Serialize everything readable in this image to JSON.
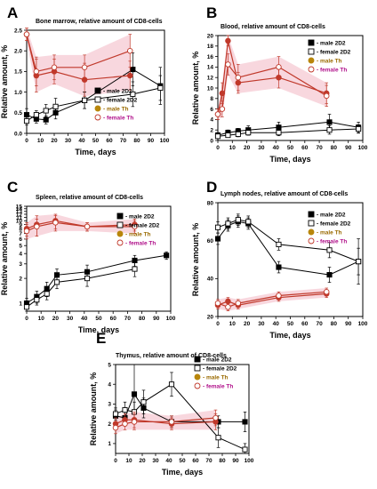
{
  "colors": {
    "male_2D2": "#000000",
    "female_2D2": "#000000",
    "male_Th": "#c0392b",
    "female_Th": "#c0392b",
    "band": "#f5c6d0",
    "legend_th_male": "#9a6a00",
    "legend_th_female": "#b0108a"
  },
  "chart_data": [
    {
      "letter": "A",
      "type": "line",
      "title": "Bone marrow, relative amount of CD8-cells",
      "xlabel": "Time, days",
      "ylabel": "Relative amount, %",
      "xlim": [
        0,
        100
      ],
      "ylim": [
        0,
        2.5
      ],
      "xticks": [
        0,
        10,
        20,
        30,
        40,
        50,
        60,
        70,
        80,
        90,
        100
      ],
      "yticks": [
        0.0,
        0.5,
        1.0,
        1.5,
        2.0,
        2.5
      ],
      "series": [
        {
          "name": "male 2D2",
          "x": [
            0,
            7,
            14,
            21,
            42,
            77,
            97
          ],
          "y": [
            0.45,
            0.35,
            0.33,
            0.5,
            0.8,
            1.55,
            1.15
          ],
          "err": [
            0.15,
            0.1,
            0.1,
            0.15,
            0.2,
            0.4,
            0.45
          ]
        },
        {
          "name": "female 2D2",
          "x": [
            0,
            7,
            14,
            21,
            42,
            77,
            97
          ],
          "y": [
            0.3,
            0.45,
            0.55,
            0.65,
            0.8,
            0.95,
            1.1
          ],
          "err": [
            0.1,
            0.1,
            0.15,
            0.2,
            0.2,
            0.3,
            0.3
          ]
        },
        {
          "name": "male Th",
          "x": [
            0,
            7,
            20,
            42,
            75
          ],
          "y": [
            2.4,
            1.4,
            1.5,
            1.3,
            1.4
          ],
          "err": [
            0.15,
            0.4,
            0.3,
            0.4,
            0.35
          ]
        },
        {
          "name": "female Th",
          "x": [
            0,
            7,
            20,
            42,
            75
          ],
          "y": [
            2.4,
            1.5,
            1.6,
            1.6,
            2.0
          ],
          "err": [
            0.15,
            0.35,
            0.3,
            0.3,
            0.4
          ]
        }
      ]
    },
    {
      "letter": "B",
      "type": "line",
      "title": "Blood, relative amount of CD8-cells",
      "xlabel": "Time, days",
      "ylabel": "Relative amount, %",
      "xlim": [
        0,
        100
      ],
      "ylim": [
        0,
        20
      ],
      "xticks": [
        0,
        10,
        20,
        30,
        40,
        50,
        60,
        70,
        80,
        90,
        100
      ],
      "yticks": [
        0,
        2,
        4,
        6,
        8,
        10,
        12,
        14,
        16,
        18,
        20
      ],
      "series": [
        {
          "name": "male 2D2",
          "x": [
            0,
            7,
            14,
            21,
            42,
            77,
            97
          ],
          "y": [
            1.0,
            1.5,
            1.8,
            2.0,
            2.5,
            3.5,
            2.5
          ],
          "err": [
            0.5,
            0.5,
            0.5,
            0.8,
            1.0,
            1.5,
            1.0
          ]
        },
        {
          "name": "female 2D2",
          "x": [
            0,
            7,
            14,
            21,
            42,
            77,
            97
          ],
          "y": [
            0.8,
            1.0,
            1.2,
            1.5,
            1.5,
            2.0,
            2.2
          ],
          "err": [
            0.3,
            0.4,
            0.5,
            0.5,
            0.6,
            0.8,
            0.8
          ]
        },
        {
          "name": "male Th",
          "x": [
            0,
            3,
            7,
            14,
            42,
            75
          ],
          "y": [
            5.0,
            9.0,
            19.0,
            11.0,
            12.0,
            9.0
          ],
          "err": [
            1.0,
            2.0,
            1.0,
            2.0,
            2.0,
            2.0
          ]
        },
        {
          "name": "female Th",
          "x": [
            0,
            3,
            7,
            14,
            42,
            75
          ],
          "y": [
            5.0,
            6.0,
            14.5,
            12.0,
            14.0,
            8.5
          ],
          "err": [
            1.0,
            1.5,
            2.0,
            2.5,
            2.0,
            2.0
          ]
        }
      ]
    },
    {
      "letter": "C",
      "type": "line",
      "title": "Spleen, relative amount of CD8-cells",
      "xlabel": "Time, days",
      "ylabel": "Relative amount, %",
      "xlim": [
        0,
        100
      ],
      "ylim": [
        0.8,
        15
      ],
      "yscale": "log",
      "xticks": [
        0,
        10,
        20,
        30,
        40,
        50,
        60,
        70,
        80,
        90,
        100
      ],
      "yticks": [
        1,
        2,
        3,
        4,
        5,
        6,
        7,
        8,
        9,
        10,
        11,
        12,
        13,
        14,
        15
      ],
      "series": [
        {
          "name": "male 2D2",
          "x": [
            0,
            7,
            14,
            21,
            42,
            75,
            97
          ],
          "y": [
            1.0,
            1.2,
            1.5,
            2.2,
            2.4,
            3.3,
            3.8
          ],
          "err": [
            0.15,
            0.2,
            0.3,
            0.4,
            0.5,
            0.5,
            0.4
          ]
        },
        {
          "name": "female 2D2",
          "x": [
            0,
            7,
            14,
            21,
            42,
            75
          ],
          "y": [
            0.9,
            1.1,
            1.3,
            1.8,
            2.0,
            2.6
          ],
          "err": [
            0.1,
            0.15,
            0.2,
            0.3,
            0.4,
            0.5
          ]
        },
        {
          "name": "male Th",
          "x": [
            0,
            7,
            20,
            42,
            75
          ],
          "y": [
            8.0,
            9.0,
            10.0,
            8.5,
            9.0
          ],
          "err": [
            1.5,
            2.5,
            2.0,
            1.0,
            1.5
          ]
        },
        {
          "name": "female Th",
          "x": [
            0,
            7,
            20,
            42,
            75
          ],
          "y": [
            7.5,
            8.5,
            9.5,
            8.5,
            8.5
          ],
          "err": [
            1.5,
            2.0,
            2.0,
            1.0,
            1.5
          ]
        }
      ]
    },
    {
      "letter": "D",
      "type": "line",
      "title": "Lymph nodes, relative amount of CD8-cells",
      "xlabel": "Time, days",
      "ylabel": "Relative amount, %",
      "xlim": [
        0,
        100
      ],
      "ylim": [
        20,
        80
      ],
      "xticks": [
        0,
        10,
        20,
        30,
        40,
        50,
        60,
        70,
        80,
        90,
        100
      ],
      "yticks": [
        20,
        40,
        60,
        80
      ],
      "series": [
        {
          "name": "male 2D2",
          "x": [
            0,
            7,
            14,
            21,
            42,
            77,
            97
          ],
          "y": [
            61,
            68,
            70,
            69,
            46,
            42,
            49
          ],
          "err": [
            3,
            3,
            3,
            3,
            3,
            4,
            7
          ]
        },
        {
          "name": "female 2D2",
          "x": [
            0,
            7,
            14,
            21,
            42,
            77,
            97
          ],
          "y": [
            67,
            69,
            71,
            70,
            58,
            55,
            49
          ],
          "err": [
            3,
            3,
            3,
            3,
            3,
            4,
            12
          ]
        },
        {
          "name": "male Th",
          "x": [
            0,
            7,
            14,
            42,
            75
          ],
          "y": [
            26,
            28,
            26,
            30,
            32
          ],
          "err": [
            2,
            2,
            2,
            2,
            2
          ]
        },
        {
          "name": "female Th",
          "x": [
            0,
            7,
            14,
            42,
            75
          ],
          "y": [
            27,
            25,
            27,
            31,
            33
          ],
          "err": [
            2,
            2,
            2,
            2,
            2
          ]
        }
      ]
    },
    {
      "letter": "E",
      "type": "line",
      "title": "Thymus, relative amount of CD8-cells",
      "xlabel": "Time, days",
      "ylabel": "Relative amount, %",
      "xlim": [
        0,
        100
      ],
      "ylim": [
        0.5,
        5
      ],
      "xticks": [
        0,
        10,
        20,
        30,
        40,
        50,
        60,
        70,
        80,
        90,
        100
      ],
      "yticks": [
        1,
        2,
        3,
        4,
        5
      ],
      "series": [
        {
          "name": "male 2D2",
          "x": [
            0,
            7,
            14,
            21,
            42,
            77,
            97
          ],
          "y": [
            2.4,
            2.3,
            3.5,
            2.8,
            2.1,
            2.1,
            2.1
          ],
          "err": [
            0.3,
            0.4,
            1.5,
            0.5,
            0.3,
            0.3,
            0.5
          ]
        },
        {
          "name": "female 2D2",
          "x": [
            0,
            7,
            14,
            21,
            42,
            77,
            97
          ],
          "y": [
            2.5,
            2.7,
            2.6,
            3.1,
            4.0,
            1.3,
            0.7
          ],
          "err": [
            0.3,
            0.4,
            0.5,
            0.6,
            0.6,
            0.5,
            0.3
          ]
        },
        {
          "name": "male Th",
          "x": [
            0,
            7,
            14,
            42,
            75
          ],
          "y": [
            2.0,
            2.2,
            2.2,
            2.0,
            2.1
          ],
          "err": [
            0.3,
            0.3,
            0.4,
            0.3,
            0.4
          ]
        },
        {
          "name": "female Th",
          "x": [
            0,
            7,
            14,
            42,
            75
          ],
          "y": [
            1.8,
            2.0,
            2.1,
            2.1,
            2.3
          ],
          "err": [
            0.3,
            0.3,
            0.4,
            0.3,
            0.4
          ]
        }
      ]
    }
  ]
}
